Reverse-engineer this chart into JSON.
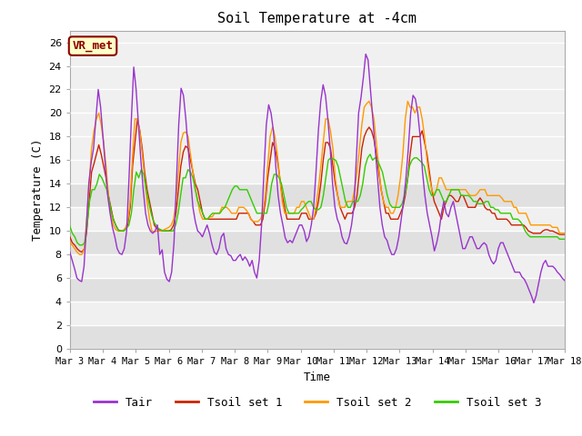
{
  "title": "Soil Temperature at -4cm",
  "xlabel": "Time",
  "ylabel": "Temperature (C)",
  "ylim": [
    0,
    27
  ],
  "xlim": [
    0,
    15
  ],
  "background_color": "#ffffff",
  "plot_bg_light": "#f0f0f0",
  "plot_bg_dark": "#e0e0e0",
  "grid_color": "#ffffff",
  "annotation_text": "VR_met",
  "annotation_bg": "#ffffc8",
  "annotation_border": "#8b0000",
  "x_tick_labels": [
    "Mar 3",
    "Mar 4",
    "Mar 5",
    "Mar 6",
    "Mar 7",
    "Mar 8",
    "Mar 9",
    "Mar 10",
    "Mar 11",
    "Mar 12",
    "Mar 13",
    "Mar 14",
    "Mar 15",
    "Mar 16",
    "Mar 17",
    "Mar 18"
  ],
  "tair_color": "#9933cc",
  "tsoil1_color": "#cc2200",
  "tsoil2_color": "#ff9900",
  "tsoil3_color": "#33cc00",
  "legend_labels": [
    "Tair",
    "Tsoil set 1",
    "Tsoil set 2",
    "Tsoil set 3"
  ],
  "tair": [
    8.2,
    7.5,
    6.8,
    6.0,
    5.8,
    5.7,
    7.0,
    10.5,
    14.0,
    15.8,
    17.0,
    19.5,
    22.0,
    20.5,
    18.0,
    15.5,
    13.0,
    11.5,
    10.3,
    9.5,
    8.5,
    8.1,
    8.0,
    8.5,
    10.0,
    14.5,
    19.5,
    23.9,
    22.0,
    19.0,
    16.0,
    13.5,
    11.5,
    10.5,
    10.0,
    9.8,
    10.0,
    10.5,
    8.0,
    8.4,
    6.5,
    5.9,
    5.7,
    6.5,
    9.0,
    14.0,
    19.0,
    22.1,
    21.5,
    19.5,
    17.0,
    14.5,
    12.0,
    10.8,
    10.0,
    9.8,
    9.5,
    10.0,
    10.5,
    9.8,
    8.9,
    8.2,
    8.0,
    8.5,
    9.5,
    9.8,
    8.5,
    8.0,
    7.9,
    7.5,
    7.5,
    7.8,
    8.0,
    7.5,
    7.8,
    7.5,
    7.0,
    7.5,
    6.5,
    6.0,
    7.5,
    10.5,
    15.0,
    19.0,
    20.7,
    20.0,
    18.5,
    15.5,
    13.0,
    11.5,
    10.5,
    9.4,
    9.0,
    9.2,
    9.0,
    9.5,
    10.0,
    10.5,
    10.5,
    10.0,
    9.1,
    9.5,
    10.5,
    12.0,
    15.0,
    18.5,
    21.0,
    22.4,
    21.5,
    19.5,
    17.0,
    14.0,
    12.0,
    11.0,
    10.5,
    9.5,
    9.0,
    8.9,
    9.5,
    10.5,
    12.0,
    16.0,
    20.0,
    21.3,
    23.0,
    25.0,
    24.5,
    22.0,
    19.5,
    17.0,
    14.5,
    12.0,
    10.5,
    9.5,
    9.2,
    8.5,
    8.0,
    8.0,
    8.5,
    9.5,
    11.0,
    12.5,
    14.5,
    17.0,
    20.0,
    21.5,
    21.2,
    20.0,
    18.0,
    15.0,
    13.0,
    11.5,
    10.5,
    9.5,
    8.3,
    9.0,
    10.0,
    11.5,
    12.5,
    11.5,
    11.2,
    12.0,
    12.5,
    11.5,
    10.5,
    9.5,
    8.5,
    8.5,
    9.0,
    9.5,
    9.5,
    9.0,
    8.5,
    8.5,
    8.8,
    9.0,
    8.8,
    8.0,
    7.5,
    7.2,
    7.5,
    8.5,
    9.0,
    9.0,
    8.5,
    8.0,
    7.5,
    7.0,
    6.5,
    6.5,
    6.5,
    6.1,
    5.9,
    5.5,
    5.0,
    4.5,
    3.9,
    4.5,
    5.5,
    6.5,
    7.2,
    7.5,
    7.0,
    7.0,
    7.0,
    6.8,
    6.5,
    6.3,
    6.0,
    5.8
  ],
  "tsoil1": [
    9.5,
    9.0,
    8.8,
    8.5,
    8.3,
    8.2,
    8.5,
    10.0,
    12.5,
    15.0,
    15.7,
    16.5,
    17.3,
    16.5,
    15.5,
    14.5,
    13.0,
    12.0,
    11.0,
    10.5,
    10.1,
    10.0,
    10.0,
    10.2,
    10.5,
    12.0,
    15.5,
    17.5,
    19.5,
    18.5,
    17.0,
    15.0,
    13.5,
    12.5,
    11.5,
    10.5,
    10.2,
    10.1,
    10.0,
    10.0,
    10.0,
    10.0,
    10.1,
    10.5,
    11.5,
    13.5,
    15.5,
    16.7,
    17.2,
    17.0,
    16.0,
    15.0,
    14.0,
    13.5,
    12.5,
    11.5,
    11.0,
    11.0,
    11.0,
    11.0,
    11.0,
    11.0,
    11.0,
    11.0,
    11.0,
    11.0,
    11.0,
    11.0,
    11.0,
    11.0,
    11.5,
    11.5,
    11.5,
    11.5,
    11.5,
    11.0,
    10.8,
    10.5,
    10.5,
    10.5,
    11.0,
    12.5,
    14.5,
    16.0,
    17.5,
    17.0,
    16.0,
    14.5,
    13.0,
    12.0,
    11.0,
    11.0,
    11.0,
    11.0,
    11.0,
    11.0,
    11.5,
    11.5,
    11.5,
    11.0,
    11.0,
    11.0,
    11.5,
    12.5,
    14.0,
    16.0,
    17.5,
    17.5,
    17.0,
    15.5,
    14.0,
    13.0,
    12.0,
    11.5,
    11.0,
    11.5,
    11.5,
    11.5,
    12.0,
    13.0,
    15.0,
    17.0,
    18.0,
    18.5,
    18.8,
    18.5,
    17.8,
    16.5,
    15.0,
    13.5,
    12.5,
    11.5,
    11.5,
    11.0,
    11.0,
    11.0,
    11.0,
    11.5,
    12.0,
    13.0,
    14.5,
    16.5,
    18.0,
    18.0,
    18.0,
    18.0,
    18.5,
    17.5,
    16.5,
    15.0,
    13.5,
    12.5,
    12.0,
    11.5,
    11.0,
    12.0,
    12.5,
    13.0,
    13.0,
    12.8,
    12.5,
    12.5,
    13.0,
    13.0,
    12.5,
    12.0,
    12.0,
    12.0,
    12.0,
    12.5,
    12.8,
    12.5,
    12.0,
    11.8,
    11.8,
    11.5,
    11.5,
    11.0,
    11.0,
    11.0,
    11.0,
    11.0,
    10.8,
    10.5,
    10.5,
    10.5,
    10.5,
    10.5,
    10.5,
    10.3,
    10.0,
    9.9,
    9.8,
    9.8,
    9.8,
    9.8,
    10.0,
    10.1,
    10.1,
    10.0,
    10.0,
    9.9,
    9.8,
    9.7,
    9.7,
    9.7
  ],
  "tsoil2": [
    9.0,
    8.8,
    8.5,
    8.2,
    8.0,
    8.0,
    8.5,
    11.0,
    14.0,
    17.0,
    18.5,
    19.5,
    20.0,
    19.0,
    17.5,
    15.5,
    13.0,
    11.5,
    10.5,
    10.1,
    10.0,
    10.0,
    10.0,
    10.2,
    10.8,
    12.5,
    16.5,
    19.5,
    19.5,
    18.5,
    16.5,
    14.5,
    12.5,
    11.0,
    10.0,
    9.9,
    10.0,
    10.0,
    10.0,
    10.1,
    10.2,
    10.3,
    10.5,
    11.0,
    12.5,
    15.0,
    17.5,
    18.3,
    18.4,
    18.0,
    16.5,
    15.0,
    13.5,
    12.5,
    11.5,
    11.0,
    11.0,
    11.0,
    11.2,
    11.2,
    11.5,
    11.5,
    11.5,
    12.0,
    12.0,
    12.0,
    11.8,
    11.5,
    11.5,
    11.5,
    12.0,
    12.0,
    12.0,
    11.8,
    11.5,
    11.0,
    10.8,
    10.8,
    10.8,
    11.0,
    11.5,
    13.0,
    15.5,
    18.0,
    18.8,
    18.0,
    16.5,
    14.5,
    12.5,
    11.5,
    11.5,
    11.5,
    11.5,
    11.5,
    12.0,
    12.0,
    12.5,
    12.5,
    12.0,
    11.5,
    11.0,
    11.0,
    12.0,
    13.5,
    15.5,
    17.5,
    19.5,
    19.5,
    18.5,
    17.0,
    14.5,
    13.0,
    12.0,
    12.0,
    12.0,
    12.5,
    12.5,
    12.5,
    13.5,
    15.0,
    17.0,
    19.0,
    20.5,
    20.8,
    21.0,
    20.5,
    19.5,
    17.5,
    15.5,
    13.5,
    12.5,
    12.0,
    12.0,
    11.5,
    11.5,
    12.0,
    13.0,
    14.5,
    16.5,
    19.5,
    21.0,
    20.5,
    20.5,
    20.0,
    20.5,
    20.5,
    19.5,
    18.0,
    16.0,
    14.5,
    13.5,
    13.0,
    13.5,
    14.5,
    14.5,
    14.0,
    13.5,
    13.5,
    13.5,
    13.5,
    13.5,
    13.5,
    13.5,
    13.5,
    13.5,
    13.2,
    13.0,
    13.0,
    13.0,
    13.2,
    13.5,
    13.5,
    13.5,
    13.0,
    13.0,
    13.0,
    13.0,
    13.0,
    13.0,
    12.8,
    12.5,
    12.5,
    12.5,
    12.5,
    12.0,
    12.0,
    11.5,
    11.5,
    11.5,
    11.5,
    11.0,
    10.5,
    10.5,
    10.5,
    10.5,
    10.5,
    10.5,
    10.5,
    10.5,
    10.5,
    10.3,
    10.3,
    10.3,
    9.8,
    9.8,
    9.8
  ],
  "tsoil3": [
    10.4,
    9.8,
    9.5,
    9.0,
    8.8,
    8.8,
    9.0,
    10.5,
    12.5,
    13.5,
    13.5,
    14.0,
    14.8,
    14.5,
    14.0,
    13.5,
    12.5,
    11.5,
    10.8,
    10.3,
    10.0,
    10.0,
    10.0,
    10.2,
    10.5,
    11.5,
    13.5,
    15.0,
    14.5,
    15.2,
    14.8,
    13.5,
    12.5,
    11.5,
    10.8,
    10.5,
    10.2,
    10.1,
    10.0,
    10.0,
    10.0,
    10.0,
    10.0,
    10.5,
    11.5,
    13.0,
    14.5,
    14.5,
    15.2,
    15.0,
    14.5,
    13.5,
    12.5,
    12.0,
    11.5,
    11.0,
    11.0,
    11.3,
    11.5,
    11.5,
    11.5,
    11.5,
    11.8,
    12.0,
    12.5,
    13.0,
    13.5,
    13.8,
    13.8,
    13.5,
    13.5,
    13.5,
    13.5,
    13.0,
    12.5,
    12.0,
    11.5,
    11.5,
    11.5,
    11.5,
    11.5,
    12.5,
    14.0,
    14.8,
    14.8,
    14.5,
    14.0,
    13.0,
    12.0,
    11.5,
    11.5,
    11.5,
    11.5,
    11.5,
    11.8,
    12.0,
    12.3,
    12.5,
    12.5,
    12.0,
    11.8,
    11.8,
    12.0,
    13.0,
    14.5,
    16.0,
    16.2,
    16.1,
    16.0,
    15.5,
    14.5,
    13.5,
    12.5,
    12.0,
    12.0,
    12.5,
    12.5,
    12.5,
    13.0,
    14.0,
    15.5,
    16.2,
    16.5,
    16.0,
    16.2,
    16.0,
    15.5,
    15.0,
    14.0,
    13.0,
    12.3,
    12.0,
    12.0,
    12.0,
    12.0,
    12.3,
    13.0,
    14.0,
    15.5,
    16.0,
    16.2,
    16.2,
    16.0,
    15.8,
    15.5,
    14.5,
    13.5,
    13.0,
    13.0,
    13.5,
    13.5,
    13.0,
    12.5,
    12.5,
    13.0,
    13.5,
    13.5,
    13.5,
    13.5,
    13.0,
    13.0,
    13.0,
    13.0,
    12.8,
    12.5,
    12.5,
    12.3,
    12.3,
    12.3,
    12.5,
    12.5,
    12.0,
    12.0,
    11.8,
    11.8,
    11.5,
    11.5,
    11.5,
    11.5,
    11.5,
    11.0,
    11.0,
    11.0,
    10.8,
    10.5,
    10.0,
    9.7,
    9.5,
    9.5,
    9.5,
    9.5,
    9.5,
    9.5,
    9.5,
    9.5,
    9.5,
    9.5,
    9.5,
    9.5,
    9.3,
    9.3,
    9.3
  ]
}
